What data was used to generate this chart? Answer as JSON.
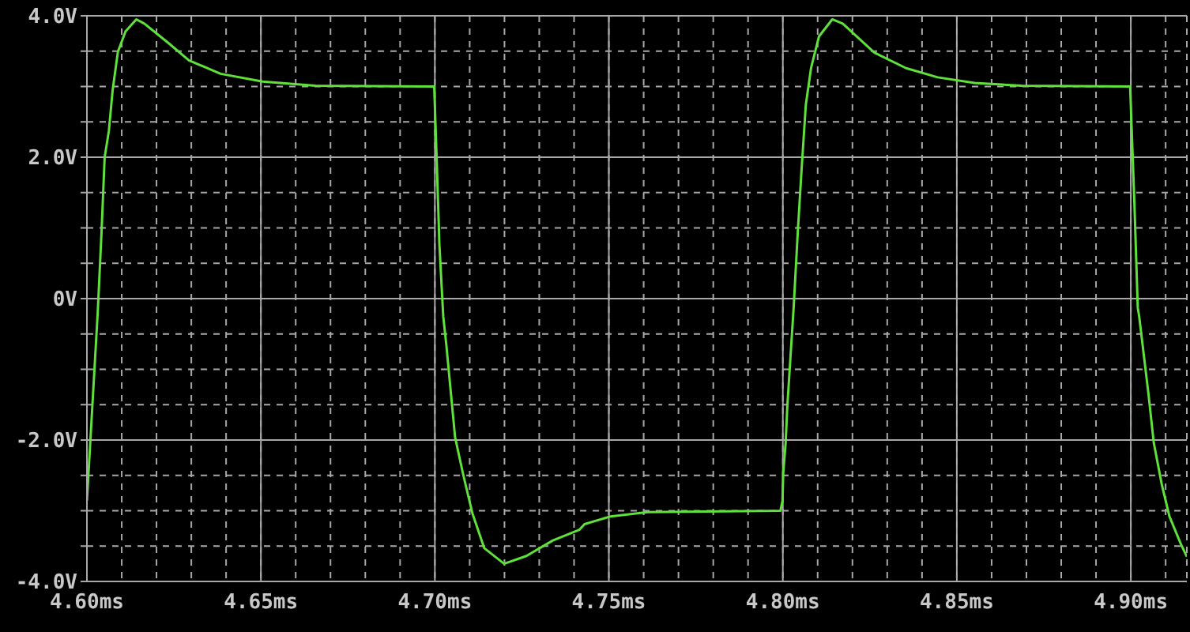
{
  "chart_data": {
    "type": "line",
    "grid": true,
    "x": [
      4.6,
      4.6031,
      4.6042,
      4.6051,
      4.6063,
      4.6074,
      4.6089,
      4.6111,
      4.6142,
      4.6165,
      4.6233,
      4.6293,
      4.6384,
      4.6505,
      4.6657,
      4.6998,
      4.7005,
      4.7013,
      4.7024,
      4.7033,
      4.7058,
      4.7081,
      4.7108,
      4.7142,
      4.7199,
      4.7263,
      4.7339,
      4.7415,
      4.743,
      4.7505,
      4.7611,
      4.7993,
      4.7999,
      4.8001,
      4.8008,
      4.8013,
      4.8031,
      4.8043,
      4.8054,
      4.8066,
      4.8081,
      4.8104,
      4.8142,
      4.8172,
      4.8263,
      4.8354,
      4.8445,
      4.8551,
      4.8687,
      4.8998,
      4.9005,
      4.901,
      4.902,
      4.9024,
      4.9051,
      4.9066,
      4.9089,
      4.9111,
      4.9142,
      4.9161
    ],
    "series": [
      {
        "color": "#5fe03a",
        "values": [
          -2.86,
          -0.2,
          0.94,
          2.0,
          2.37,
          2.95,
          3.49,
          3.78,
          3.95,
          3.89,
          3.62,
          3.37,
          3.18,
          3.07,
          3.01,
          3.0,
          2.0,
          0.76,
          -0.25,
          -0.66,
          -1.96,
          -2.48,
          -3.04,
          -3.53,
          -3.75,
          -3.64,
          -3.42,
          -3.27,
          -3.19,
          -3.08,
          -3.02,
          -3.0,
          -2.86,
          -2.48,
          -2.04,
          -1.51,
          -0.13,
          0.95,
          1.84,
          2.74,
          3.26,
          3.71,
          3.95,
          3.89,
          3.48,
          3.26,
          3.13,
          3.05,
          3.01,
          3.0,
          2.06,
          1.39,
          -0.13,
          -0.25,
          -1.36,
          -2.04,
          -2.63,
          -3.08,
          -3.45,
          -3.65
        ]
      }
    ],
    "xlim": [
      4.6,
      4.9161
    ],
    "xticks": [
      {
        "value": 4.6,
        "label": "4.60ms"
      },
      {
        "value": 4.61,
        "label": null
      },
      {
        "value": 4.62,
        "label": null
      },
      {
        "value": 4.63,
        "label": null
      },
      {
        "value": 4.64,
        "label": null
      },
      {
        "value": 4.65,
        "label": "4.65ms"
      },
      {
        "value": 4.66,
        "label": null
      },
      {
        "value": 4.67,
        "label": null
      },
      {
        "value": 4.68,
        "label": null
      },
      {
        "value": 4.69,
        "label": null
      },
      {
        "value": 4.7,
        "label": "4.70ms"
      },
      {
        "value": 4.71,
        "label": null
      },
      {
        "value": 4.72,
        "label": null
      },
      {
        "value": 4.73,
        "label": null
      },
      {
        "value": 4.74,
        "label": null
      },
      {
        "value": 4.75,
        "label": "4.75ms"
      },
      {
        "value": 4.76,
        "label": null
      },
      {
        "value": 4.77,
        "label": null
      },
      {
        "value": 4.78,
        "label": null
      },
      {
        "value": 4.79,
        "label": null
      },
      {
        "value": 4.8,
        "label": "4.80ms"
      },
      {
        "value": 4.81,
        "label": null
      },
      {
        "value": 4.82,
        "label": null
      },
      {
        "value": 4.83,
        "label": null
      },
      {
        "value": 4.84,
        "label": null
      },
      {
        "value": 4.85,
        "label": "4.85ms"
      },
      {
        "value": 4.86,
        "label": null
      },
      {
        "value": 4.87,
        "label": null
      },
      {
        "value": 4.88,
        "label": null
      },
      {
        "value": 4.89,
        "label": null
      },
      {
        "value": 4.9,
        "label": "4.90ms"
      },
      {
        "value": 4.91,
        "label": null
      }
    ],
    "ylim": [
      -4,
      4
    ],
    "yticks": [
      {
        "value": -4,
        "label": "-4.0V"
      },
      {
        "value": -3.5,
        "label": null
      },
      {
        "value": -3,
        "label": null
      },
      {
        "value": -2.5,
        "label": null
      },
      {
        "value": -2,
        "label": "-2.0V"
      },
      {
        "value": -1.5,
        "label": null
      },
      {
        "value": -1,
        "label": null
      },
      {
        "value": -0.5,
        "label": null
      },
      {
        "value": 0,
        "label": "0V"
      },
      {
        "value": 0.5,
        "label": null
      },
      {
        "value": 1,
        "label": null
      },
      {
        "value": 1.5,
        "label": null
      },
      {
        "value": 2,
        "label": "2.0V"
      },
      {
        "value": 2.5,
        "label": null
      },
      {
        "value": 3,
        "label": null
      },
      {
        "value": 3.5,
        "label": null
      },
      {
        "value": 4,
        "label": "4.0V"
      }
    ]
  }
}
